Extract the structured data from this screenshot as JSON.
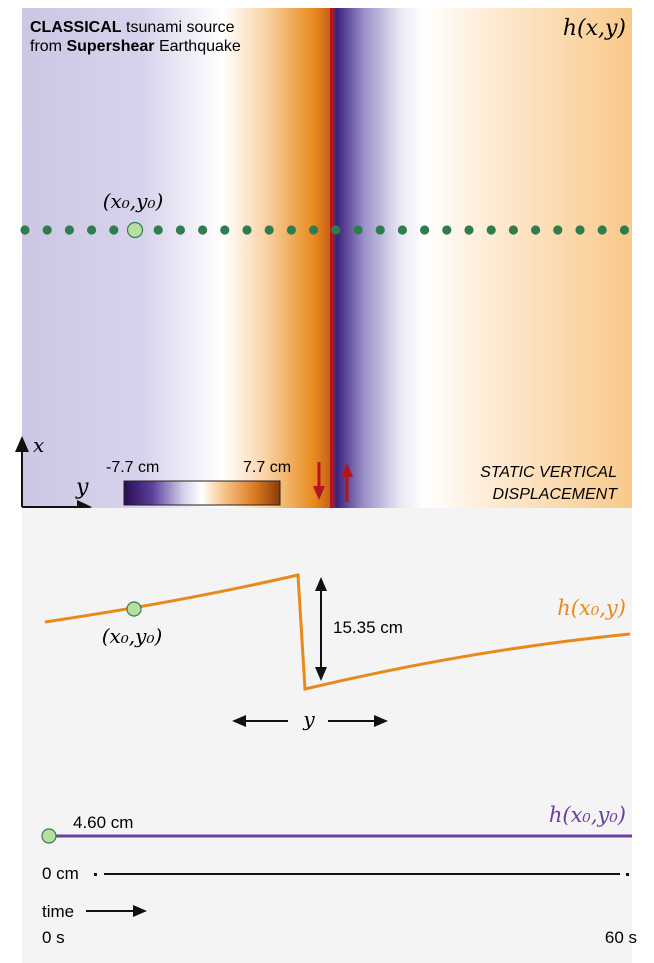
{
  "map_panel": {
    "title_line1_bold": "CLASSICAL",
    "title_line1_rest": " tsunami source",
    "title_line2_pre": "from ",
    "title_line2_bold": "Supershear",
    "title_line2_rest": " Earthquake",
    "field_label": "h(x,y)",
    "point_label": "(x₀,y₀)",
    "axis_x": "x",
    "axis_y": "y",
    "colorbar_min": "-7.7 cm",
    "colorbar_max": "7.7 cm",
    "mode_line1": "STATIC VERTICAL",
    "mode_line2": "DISPLACEMENT",
    "colors": {
      "negative": "#3b1f7a",
      "neutral": "#ffffff",
      "positive": "#e8891c",
      "fault": "#b3141d",
      "stations": "#2f7d4f",
      "marker_fill": "#b9dfa0"
    }
  },
  "profile_panel": {
    "curve_label": "h(x₀,y)",
    "point_label": "(x₀,y₀)",
    "jump_label": "15.35 cm",
    "axis_label": "y",
    "curve_color": "#e8891c"
  },
  "timeseries_panel": {
    "curve_label": "h(x₀,y₀)",
    "value_label": "4.60 cm",
    "baseline_label": "0 cm",
    "time_label": "time",
    "t_start": "0 s",
    "t_end": "60 s",
    "curve_color": "#6b3fa0"
  }
}
